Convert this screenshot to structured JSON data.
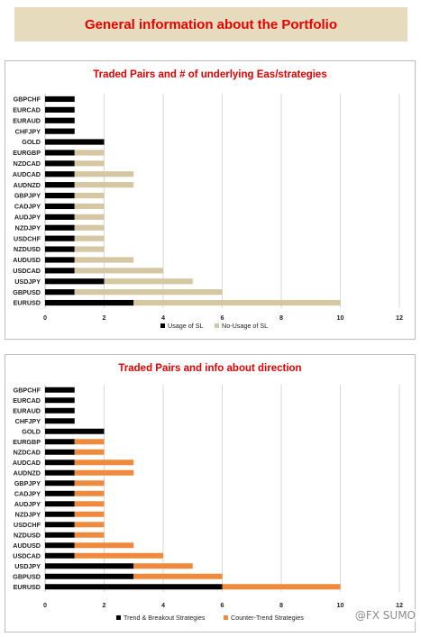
{
  "header": {
    "title": "General information about the Portfolio"
  },
  "watermark": "@FX SUMO",
  "chart_data": [
    {
      "type": "bar",
      "orientation": "horizontal",
      "stacked": true,
      "title": "Traded Pairs and # of underlying Eas/strategies",
      "categories": [
        "GBPCHF",
        "EURCAD",
        "EURAUD",
        "CHFJPY",
        "GOLD",
        "EURGBP",
        "NZDCAD",
        "AUDCAD",
        "AUDNZD",
        "GBPJPY",
        "CADJPY",
        "AUDJPY",
        "NZDJPY",
        "USDCHF",
        "NZDUSD",
        "AUDUSD",
        "USDCAD",
        "USDJPY",
        "GBPUSD",
        "EURUSD"
      ],
      "series": [
        {
          "name": "Usage of SL",
          "color": "#000000",
          "values": [
            1,
            1,
            1,
            1,
            2,
            1,
            1,
            1,
            1,
            1,
            1,
            1,
            1,
            1,
            1,
            1,
            1,
            2,
            1,
            3
          ]
        },
        {
          "name": "No-Usage of SL",
          "color": "#d4c7a2",
          "values": [
            0,
            0,
            0,
            0,
            0,
            1,
            1,
            2,
            2,
            1,
            1,
            1,
            1,
            1,
            1,
            2,
            3,
            3,
            5,
            7
          ]
        }
      ],
      "xlim": [
        0,
        12
      ],
      "xticks": [
        "0",
        "2",
        "4",
        "6",
        "8",
        "10",
        "12"
      ],
      "grid": true,
      "legend": "bottom"
    },
    {
      "type": "bar",
      "orientation": "horizontal",
      "stacked": true,
      "title": "Traded Pairs and info about direction",
      "categories": [
        "GBPCHF",
        "EURCAD",
        "EURAUD",
        "CHFJPY",
        "GOLD",
        "EURGBP",
        "NZDCAD",
        "AUDCAD",
        "AUDNZD",
        "GBPJPY",
        "CADJPY",
        "AUDJPY",
        "NZDJPY",
        "USDCHF",
        "NZDUSD",
        "AUDUSD",
        "USDCAD",
        "USDJPY",
        "GBPUSD",
        "EURUSD"
      ],
      "series": [
        {
          "name": "Trend & Breakout Strategies",
          "color": "#000000",
          "values": [
            1,
            1,
            1,
            1,
            2,
            1,
            1,
            1,
            1,
            1,
            1,
            1,
            1,
            1,
            1,
            1,
            1,
            3,
            3,
            6
          ]
        },
        {
          "name": "Counter-Trend Strategies",
          "color": "#ef8a3c",
          "values": [
            0,
            0,
            0,
            0,
            0,
            1,
            1,
            2,
            2,
            1,
            1,
            1,
            1,
            1,
            1,
            2,
            3,
            2,
            3,
            4
          ]
        }
      ],
      "xlim": [
        0,
        12
      ],
      "xticks": [
        "0",
        "2",
        "4",
        "6",
        "8",
        "10",
        "12"
      ],
      "grid": true,
      "legend": "bottom"
    }
  ]
}
